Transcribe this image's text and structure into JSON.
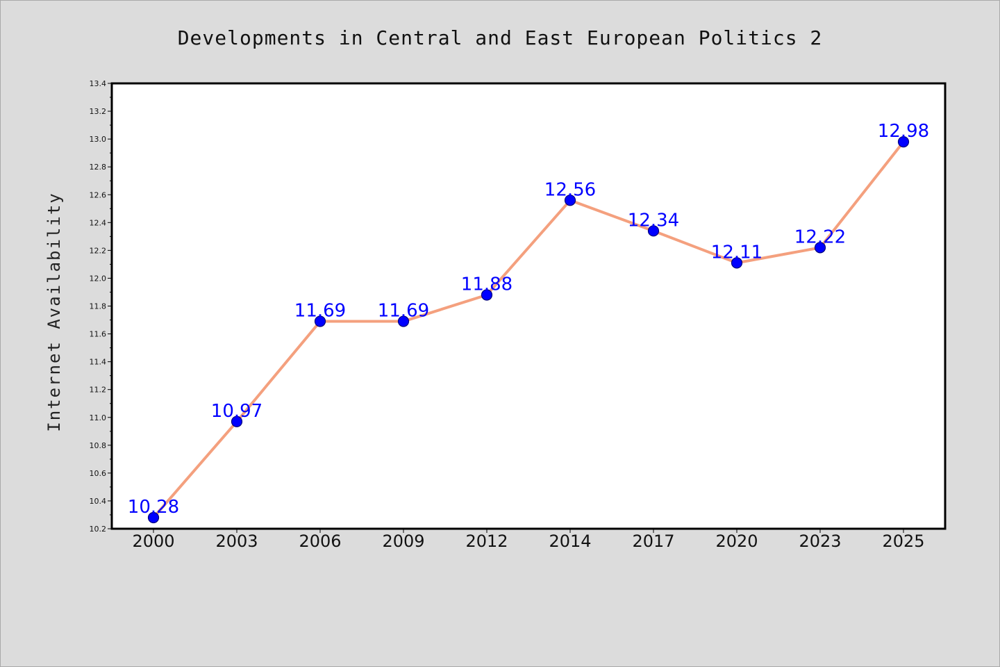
{
  "colors": {
    "background": "#dcdcdc",
    "plot_background": "#ffffff",
    "line": "#f4a07e",
    "marker_fill": "#0000ff",
    "marker_edge": "#00007a",
    "data_label": "#0000ff"
  },
  "chart_data": {
    "type": "line",
    "title": "Developments in Central and East European Politics 2",
    "xlabel": "",
    "ylabel": "Internet Availability",
    "categories": [
      "2000",
      "2003",
      "2006",
      "2009",
      "2012",
      "2014",
      "2017",
      "2020",
      "2023",
      "2025"
    ],
    "series": [
      {
        "values": [
          10.28,
          10.97,
          11.69,
          11.69,
          11.88,
          12.56,
          12.34,
          12.11,
          12.22,
          12.98
        ]
      }
    ],
    "data_labels": [
      "10.28",
      "10.97",
      "11.69",
      "11.69",
      "11.88",
      "12.56",
      "12.34",
      "12.11",
      "12.22",
      "12.98"
    ],
    "ylim": [
      10.2,
      13.4
    ],
    "yticks": [
      "10.2",
      "10.4",
      "10.6",
      "10.8",
      "11.0",
      "11.2",
      "11.4",
      "11.6",
      "11.8",
      "12.0",
      "12.2",
      "12.4",
      "12.6",
      "12.8",
      "13.0",
      "13.2",
      "13.4"
    ],
    "grid": false,
    "legend": "none"
  }
}
